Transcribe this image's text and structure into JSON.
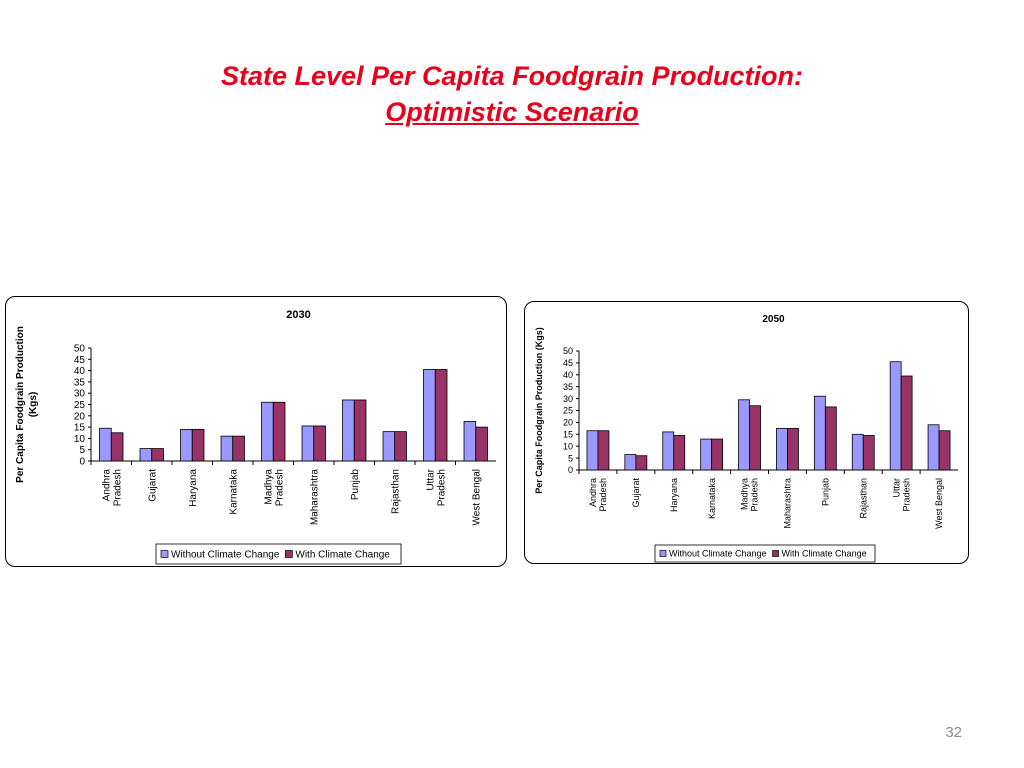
{
  "slide": {
    "title_line1": "State Level Per Capita Foodgrain Production:",
    "title_line2": "Optimistic Scenario",
    "page_number": "32"
  },
  "colors": {
    "title": "#e8001c",
    "without_climate_change": "#9999ff",
    "with_climate_change": "#993366"
  },
  "chart_data": [
    {
      "type": "bar",
      "title": "2030",
      "xlabel": "",
      "ylabel": "Per Capita Foodgrain Production (Kgs)",
      "categories": [
        "Andhra Pradesh",
        "Gujarat",
        "Haryana",
        "Karnataka",
        "Madhya Pradesh",
        "Maharashtra",
        "Punjab",
        "Rajasthan",
        "Uttar Pradesh",
        "West Bengal"
      ],
      "series": [
        {
          "name": "Without Climate Change",
          "values": [
            14.5,
            5.5,
            14,
            11,
            26,
            15.5,
            27,
            13,
            40.5,
            17.5
          ]
        },
        {
          "name": "With Climate Change",
          "values": [
            12.5,
            5.5,
            14,
            11,
            26,
            15.5,
            27,
            13,
            40.5,
            15
          ]
        }
      ],
      "ylim": [
        0,
        50
      ],
      "yticks": [
        0,
        5,
        10,
        15,
        20,
        25,
        30,
        35,
        40,
        45,
        50
      ],
      "grid": false,
      "legend": "bottom"
    },
    {
      "type": "bar",
      "title": "2050",
      "xlabel": "",
      "ylabel": "Per Capita Foodgrain Production (Kgs)",
      "categories": [
        "Andhra Pradesh",
        "Gujarat",
        "Haryana",
        "Karnataka",
        "Madhya Pradesh",
        "Maharashtra",
        "Punjab",
        "Rajasthan",
        "Uttar Pradesh",
        "West Bengal"
      ],
      "series": [
        {
          "name": "Without Climate Change",
          "values": [
            16.5,
            6.5,
            16,
            13,
            29.5,
            17.5,
            31,
            15,
            45.5,
            19
          ]
        },
        {
          "name": "With Climate Change",
          "values": [
            16.5,
            6,
            14.5,
            13,
            27,
            17.5,
            26.5,
            14.5,
            39.5,
            16.5
          ]
        }
      ],
      "ylim": [
        0,
        50
      ],
      "yticks": [
        0,
        5,
        10,
        15,
        20,
        25,
        30,
        35,
        40,
        45,
        50
      ],
      "grid": false,
      "legend": "bottom"
    }
  ]
}
